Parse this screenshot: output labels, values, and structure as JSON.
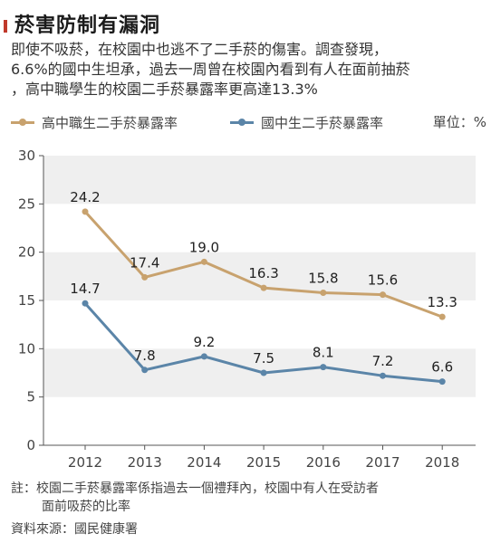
{
  "header": {
    "title": "菸害防制有漏洞",
    "subtitle_lines": [
      "即使不吸菸，在校園中也逃不了二手菸的傷害。調查發現，",
      "6.6%的國中生坦承，過去一周曾在校園內看到有人在面前抽菸",
      "，高中職學生的校園二手菸暴露率更高達13.3%"
    ]
  },
  "legend": {
    "unit": "單位：%"
  },
  "colors": {
    "high_school": "#c8a26e",
    "junior_high": "#5b85a8",
    "band": "#efefef",
    "axis": "#555555"
  },
  "chart_data": {
    "type": "line",
    "x": [
      "2012",
      "2013",
      "2014",
      "2015",
      "2016",
      "2017",
      "2018"
    ],
    "ylim": [
      0,
      30
    ],
    "yticks": [
      "0",
      "5",
      "10",
      "15",
      "20",
      "25",
      "30"
    ],
    "series": [
      {
        "name": "高中職生二手菸暴露率",
        "values": [
          24.2,
          17.4,
          19.0,
          16.3,
          15.8,
          15.6,
          13.3
        ],
        "labels": [
          "24.2",
          "17.4",
          "19.0",
          "16.3",
          "15.8",
          "15.6",
          "13.3"
        ]
      },
      {
        "name": "國中生二手菸暴露率",
        "values": [
          14.7,
          7.8,
          9.2,
          7.5,
          8.1,
          7.2,
          6.6
        ],
        "labels": [
          "14.7",
          "7.8",
          "9.2",
          "7.5",
          "8.1",
          "7.2",
          "6.6"
        ]
      }
    ]
  },
  "footer": {
    "note_line1": "註：校園二手菸暴露率係指過去一個禮拜內，校園中有人在受訪者",
    "note_line2": "面前吸菸的比率",
    "source": "資料來源：國民健康署"
  }
}
